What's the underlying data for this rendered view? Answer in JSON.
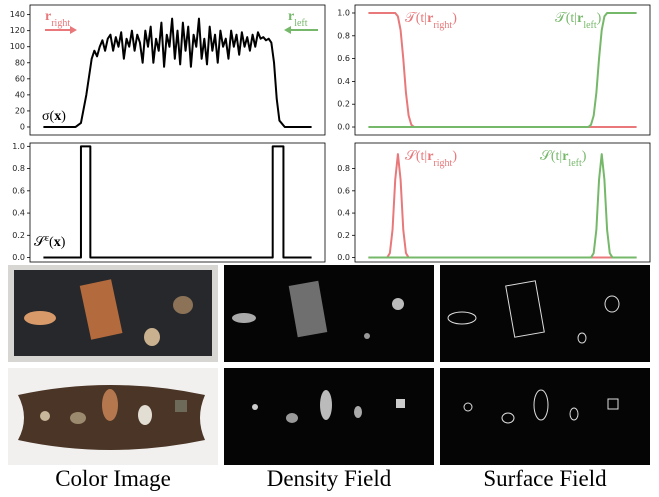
{
  "chart_data": [
    {
      "type": "line",
      "xlim": [
        -0.05,
        1.05
      ],
      "ylim": [
        -10,
        152
      ],
      "yticks": [
        0,
        20,
        40,
        60,
        80,
        100,
        120,
        140
      ],
      "label": {
        "pre": "σ(",
        "bold": "x",
        "post": ")"
      },
      "annotations": [
        {
          "bold": "r",
          "sub": "right",
          "color": "#e8787a"
        },
        {
          "bold": "r",
          "sub": "left",
          "color": "#76b86a"
        }
      ],
      "series": [
        {
          "color": "#000000",
          "x": [
            0,
            0.12,
            0.14,
            0.16,
            0.18,
            0.19,
            0.2,
            0.21,
            0.22,
            0.23,
            0.24,
            0.25,
            0.26,
            0.27,
            0.28,
            0.29,
            0.3,
            0.31,
            0.32,
            0.33,
            0.34,
            0.35,
            0.36,
            0.37,
            0.38,
            0.39,
            0.4,
            0.41,
            0.42,
            0.43,
            0.44,
            0.45,
            0.46,
            0.47,
            0.48,
            0.49,
            0.5,
            0.51,
            0.52,
            0.53,
            0.54,
            0.55,
            0.56,
            0.57,
            0.58,
            0.59,
            0.6,
            0.61,
            0.62,
            0.63,
            0.64,
            0.65,
            0.66,
            0.67,
            0.68,
            0.69,
            0.7,
            0.71,
            0.72,
            0.73,
            0.74,
            0.75,
            0.76,
            0.77,
            0.78,
            0.79,
            0.8,
            0.81,
            0.82,
            0.83,
            0.84,
            0.85,
            0.86,
            0.87,
            0.88,
            0.9,
            1
          ],
          "values": [
            0,
            0,
            5,
            40,
            85,
            95,
            88,
            100,
            108,
            95,
            110,
            115,
            95,
            112,
            100,
            118,
            85,
            110,
            100,
            120,
            95,
            115,
            105,
            80,
            120,
            100,
            125,
            80,
            110,
            95,
            130,
            75,
            115,
            100,
            135,
            85,
            120,
            78,
            130,
            95,
            125,
            75,
            115,
            100,
            135,
            85,
            110,
            78,
            125,
            95,
            115,
            80,
            120,
            100,
            110,
            85,
            120,
            100,
            115,
            90,
            118,
            100,
            112,
            95,
            115,
            100,
            118,
            110,
            112,
            108,
            110,
            105,
            80,
            35,
            8,
            0,
            0
          ]
        }
      ]
    },
    {
      "type": "line",
      "xlim": [
        -0.05,
        1.05
      ],
      "ylim": [
        -0.07,
        1.07
      ],
      "yticks": [
        {
          "value": 0,
          "label": "0.0"
        },
        {
          "value": 0.2,
          "label": "0.2"
        },
        {
          "value": 0.4,
          "label": "0.4"
        },
        {
          "value": 0.6,
          "label": "0.6"
        },
        {
          "value": 0.8,
          "label": "0.8"
        },
        {
          "value": 1,
          "label": "1.0"
        }
      ],
      "series": [
        {
          "label": {
            "pre": "𝒯(t|",
            "bold": "r",
            "sub": "right",
            "post": ")"
          },
          "color": "#e8787a",
          "x": [
            0,
            0.1,
            0.11,
            0.12,
            0.13,
            0.14,
            0.15,
            0.16,
            0.17,
            1
          ],
          "values": [
            1,
            1,
            0.97,
            0.85,
            0.6,
            0.3,
            0.1,
            0.02,
            0,
            0
          ]
        },
        {
          "label": {
            "pre": "𝒯(t|",
            "bold": "r",
            "sub": "left",
            "post": ")"
          },
          "color": "#76b86a",
          "x": [
            0,
            0.82,
            0.83,
            0.84,
            0.85,
            0.86,
            0.87,
            0.88,
            0.89,
            1
          ],
          "values": [
            0,
            0,
            0.02,
            0.1,
            0.3,
            0.6,
            0.85,
            0.97,
            1,
            1
          ]
        }
      ]
    },
    {
      "type": "line",
      "xlim": [
        -0.05,
        1.05
      ],
      "ylim": [
        -0.04,
        1.03
      ],
      "yticks": [
        {
          "value": 0,
          "label": "0.0"
        },
        {
          "value": 0.2,
          "label": "0.2"
        },
        {
          "value": 0.4,
          "label": "0.4"
        },
        {
          "value": 0.6,
          "label": "0.6"
        },
        {
          "value": 0.8,
          "label": "0.8"
        },
        {
          "value": 1,
          "label": "1.0"
        }
      ],
      "label": {
        "pre": "𝒮",
        "sup": "ε",
        "mid": "(",
        "bold": "x",
        "post": ")"
      },
      "series": [
        {
          "color": "#000000",
          "x": [
            0,
            0.14,
            0.14,
            0.175,
            0.175,
            0.855,
            0.855,
            0.895,
            0.895,
            1
          ],
          "values": [
            0,
            0,
            1,
            1,
            0,
            0,
            1,
            1,
            0,
            0
          ]
        }
      ]
    },
    {
      "type": "line",
      "xlim": [
        -0.05,
        1.05
      ],
      "ylim": [
        -0.04,
        1.03
      ],
      "yticks": [
        {
          "value": 0,
          "label": "0.0"
        },
        {
          "value": 0.2,
          "label": "0.2"
        },
        {
          "value": 0.4,
          "label": "0.4"
        },
        {
          "value": 0.6,
          "label": "0.6"
        },
        {
          "value": 0.8,
          "label": "0.8"
        }
      ],
      "series": [
        {
          "label": {
            "pre": "𝒮(t|",
            "bold": "r",
            "sub": "right",
            "post": ")"
          },
          "color": "#e8787a",
          "x": [
            0,
            0.07,
            0.08,
            0.09,
            0.1,
            0.11,
            0.12,
            0.13,
            0.14,
            0.15,
            1
          ],
          "values": [
            0,
            0,
            0.04,
            0.25,
            0.7,
            0.93,
            0.7,
            0.25,
            0.04,
            0,
            0
          ]
        },
        {
          "label": {
            "pre": "𝒮(t|",
            "bold": "r",
            "sub": "left",
            "post": ")"
          },
          "color": "#76b86a",
          "x": [
            0,
            0.83,
            0.84,
            0.85,
            0.86,
            0.87,
            0.88,
            0.89,
            0.9,
            0.91,
            1
          ],
          "values": [
            0,
            0,
            0.04,
            0.25,
            0.7,
            0.93,
            0.7,
            0.25,
            0.04,
            0,
            0
          ]
        }
      ]
    }
  ],
  "captions": [
    "Color Image",
    "Density Field",
    "Surface Field"
  ]
}
